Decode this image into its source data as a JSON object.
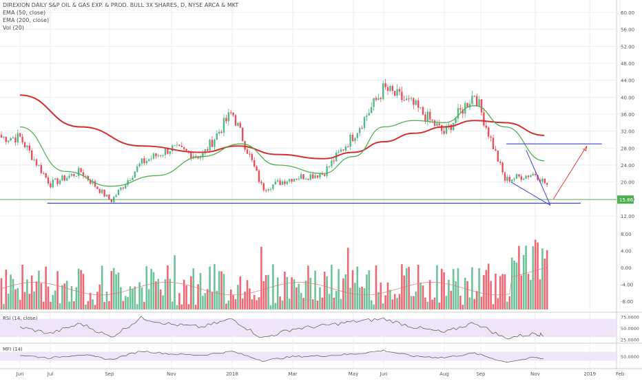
{
  "chart_data": {
    "type": "candlestick",
    "title": "DIREXION DAILY S&P OIL & GAS EXP. & PROD. BULL 3X SHARES, D, NYSE ARCA & MKT",
    "indicators_legend": [
      "EMA (50, close)",
      "EMA (200, close)",
      "Vol (20)"
    ],
    "last_price": "15.86",
    "price_axis": {
      "ticks": [
        "60.00",
        "56.00",
        "52.00",
        "48.00",
        "44.00",
        "40.00",
        "36.00",
        "32.00",
        "28.00",
        "24.00",
        "20.00",
        "16.00",
        "12.00"
      ],
      "range": [
        10,
        62
      ]
    },
    "volume_axis": {
      "ticks": [
        "8.00",
        "4.00",
        "0.00",
        "-4.00",
        "-8.00"
      ]
    },
    "time_axis": {
      "ticks": [
        "Jun",
        "Jul",
        "Sep",
        "Nov",
        "2018",
        "Mar",
        "May",
        "Jun",
        "Aug",
        "Sep",
        "Nov",
        "2019",
        "Feb"
      ]
    },
    "price_series": {
      "close_anchor_months": [
        0,
        1,
        2,
        3,
        4,
        5,
        6,
        7,
        8,
        9,
        10,
        11,
        12,
        13,
        14,
        15,
        16,
        17,
        18
      ],
      "close_values": [
        30.5,
        19.5,
        22.5,
        15.5,
        24.5,
        28.0,
        26.0,
        36.5,
        18.5,
        21.0,
        22.0,
        31.0,
        42.0,
        38.0,
        31.5,
        41.0,
        20.5,
        22.0,
        15.0
      ]
    },
    "ema50": [
      [
        0,
        33.0
      ],
      [
        1.5,
        22.5
      ],
      [
        3,
        19.0
      ],
      [
        4.5,
        21.5
      ],
      [
        6,
        26.0
      ],
      [
        7.3,
        29.0
      ],
      [
        8.5,
        24.0
      ],
      [
        10,
        22.0
      ],
      [
        11,
        26.0
      ],
      [
        12,
        33.0
      ],
      [
        13,
        34.5
      ],
      [
        14,
        34.0
      ],
      [
        15,
        38.0
      ],
      [
        16,
        33.0
      ],
      [
        17.3,
        25.0
      ]
    ],
    "ema200": [
      [
        0,
        40.5
      ],
      [
        2,
        33.0
      ],
      [
        4,
        28.5
      ],
      [
        6,
        27.0
      ],
      [
        7.2,
        28.5
      ],
      [
        8.5,
        26.5
      ],
      [
        10,
        25.5
      ],
      [
        11,
        27.0
      ],
      [
        12,
        29.5
      ],
      [
        13,
        31.5
      ],
      [
        14,
        33.0
      ],
      [
        15,
        34.5
      ],
      [
        16,
        34.0
      ],
      [
        17.3,
        31.0
      ]
    ],
    "support_line": {
      "value": 15.0
    },
    "current_price_line": {
      "value": 15.86
    },
    "resistance_line": {
      "value": 29.0
    },
    "wedge": {
      "upper": [
        [
          16.7,
          27.5
        ],
        [
          17.5,
          14.5
        ]
      ],
      "lower": [
        [
          16.2,
          20.0
        ],
        [
          17.5,
          14.5
        ]
      ]
    },
    "target_arrow": {
      "from": [
        17.6,
        16.0
      ],
      "to": [
        18.7,
        28.5
      ]
    },
    "volume_axis_range": [
      -10,
      10
    ],
    "rsi": {
      "label": "RSI (14, close)",
      "ticks": [
        "75.0000",
        "50.0000",
        "25.0000"
      ],
      "range": [
        20,
        80
      ],
      "points": [
        [
          0,
          52
        ],
        [
          1,
          38
        ],
        [
          2,
          60
        ],
        [
          3,
          30
        ],
        [
          4,
          72
        ],
        [
          5,
          58
        ],
        [
          6,
          52
        ],
        [
          7,
          70
        ],
        [
          8,
          28
        ],
        [
          9,
          48
        ],
        [
          10,
          55
        ],
        [
          11,
          64
        ],
        [
          12,
          70
        ],
        [
          13,
          52
        ],
        [
          14,
          40
        ],
        [
          15,
          62
        ],
        [
          16,
          28
        ],
        [
          17,
          38
        ],
        [
          17.3,
          34
        ]
      ]
    },
    "mfi": {
      "label": "MFI (14)",
      "ticks": [
        "50.0000"
      ],
      "range": [
        0,
        100
      ],
      "points": [
        [
          0,
          55
        ],
        [
          1,
          42
        ],
        [
          2,
          58
        ],
        [
          3,
          35
        ],
        [
          4,
          74
        ],
        [
          5,
          60
        ],
        [
          6,
          55
        ],
        [
          7,
          72
        ],
        [
          8,
          30
        ],
        [
          9,
          48
        ],
        [
          10,
          52
        ],
        [
          11,
          60
        ],
        [
          12,
          76
        ],
        [
          13,
          50
        ],
        [
          14,
          44
        ],
        [
          15,
          64
        ],
        [
          16,
          24
        ],
        [
          17,
          44
        ],
        [
          17.3,
          38
        ]
      ]
    }
  },
  "colors": {
    "up": "#53b987",
    "down": "#eb4d5c",
    "ema50": "#4caf50",
    "ema200": "#d32f2f",
    "support": "#3f3fd9",
    "price_line": "#4caf50",
    "arrow": "#e53935",
    "osc_band": "#efe5f8",
    "osc_line": "#555555",
    "grid": "#eeeeee"
  }
}
